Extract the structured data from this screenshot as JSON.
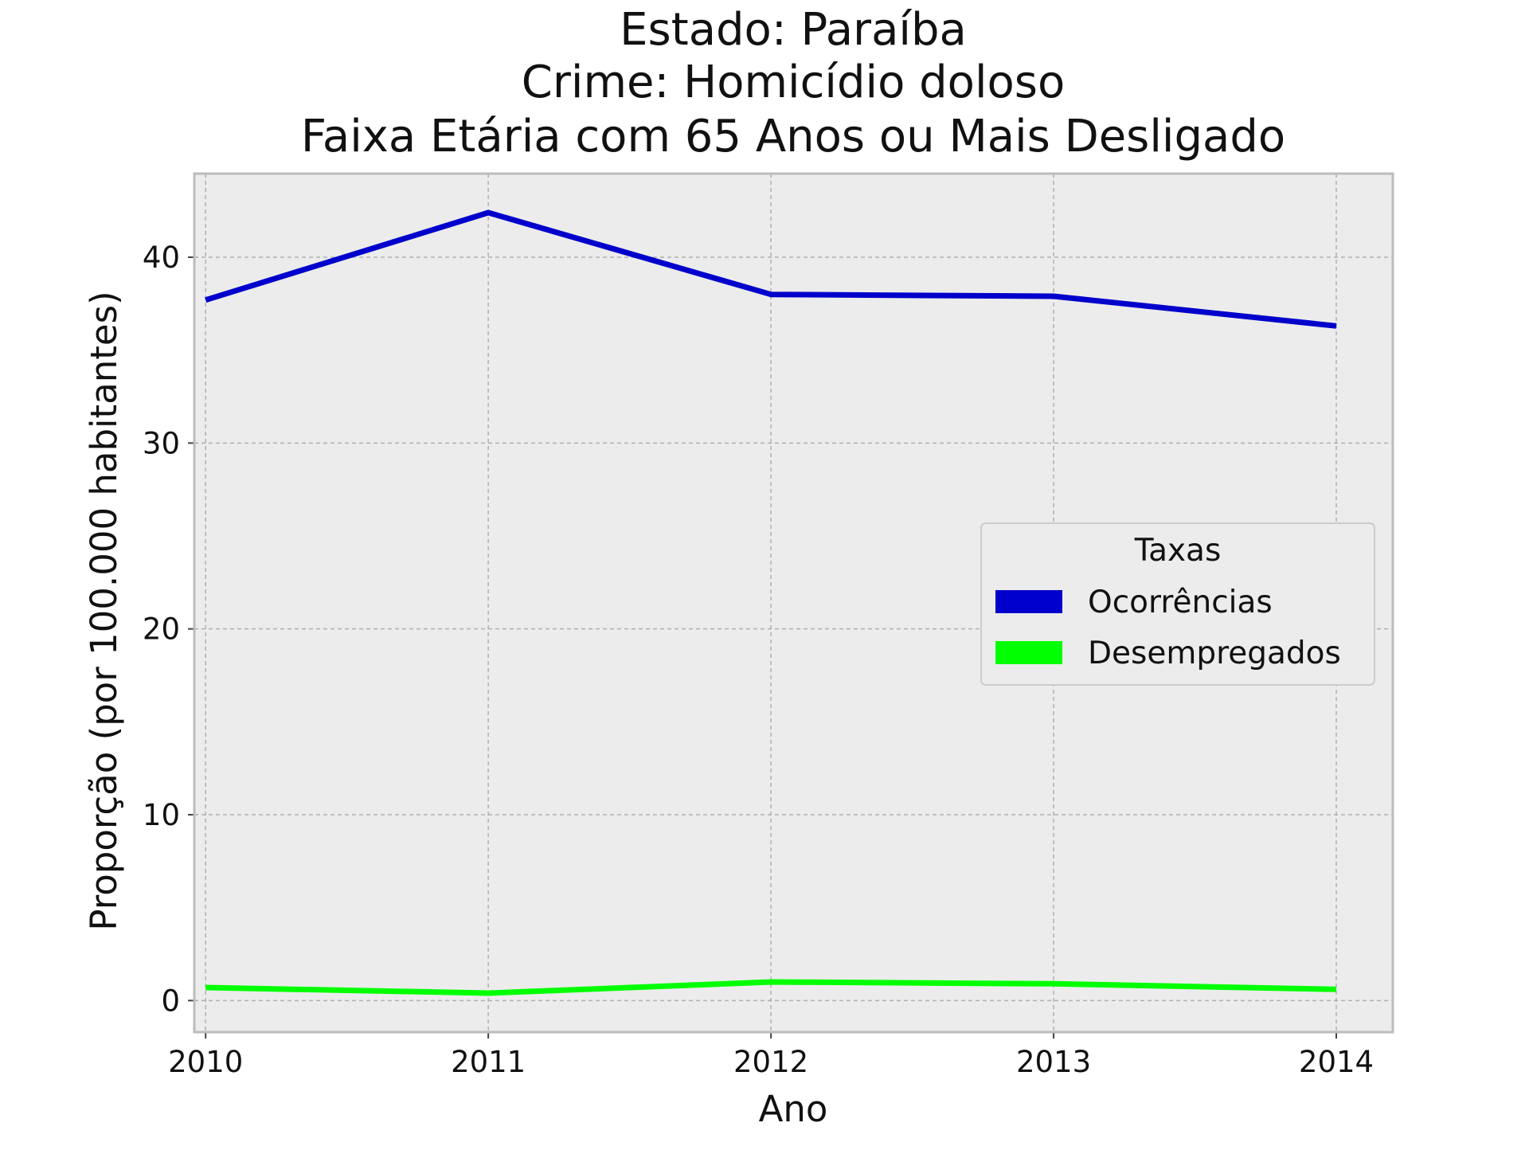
{
  "chart_data": {
    "type": "line",
    "title_lines": [
      "Estado: Paraíba",
      "Crime: Homicídio doloso",
      "Faixa Etária com 65 Anos ou Mais   Desligado"
    ],
    "xlabel": "Ano",
    "ylabel": "Proporção (por 100.000 habitantes)",
    "x": [
      2010,
      2011,
      2012,
      2013,
      2014
    ],
    "x_tick_labels": [
      "2010",
      "2011",
      "2012",
      "2013",
      "2014"
    ],
    "y_ticks": [
      0,
      10,
      20,
      30,
      40
    ],
    "y_tick_labels": [
      "0",
      "10",
      "20",
      "30",
      "40"
    ],
    "xlim": [
      2009.96,
      2014.2
    ],
    "ylim": [
      -1.7,
      44.5
    ],
    "grid": true,
    "legend": {
      "title": "Taxas",
      "placement": "center-right"
    },
    "series": [
      {
        "name": "Ocorrências",
        "color": "#0000cc",
        "values": [
          37.7,
          42.4,
          38.0,
          37.9,
          36.3
        ]
      },
      {
        "name": "Desempregados",
        "color": "#00ff00",
        "values": [
          0.7,
          0.4,
          1.0,
          0.9,
          0.6
        ]
      }
    ]
  },
  "style": {
    "plot_background": "#ececec",
    "frame_color": "#bcbcbc",
    "legend_background": "#ececec",
    "legend_border": "#cccccc"
  }
}
